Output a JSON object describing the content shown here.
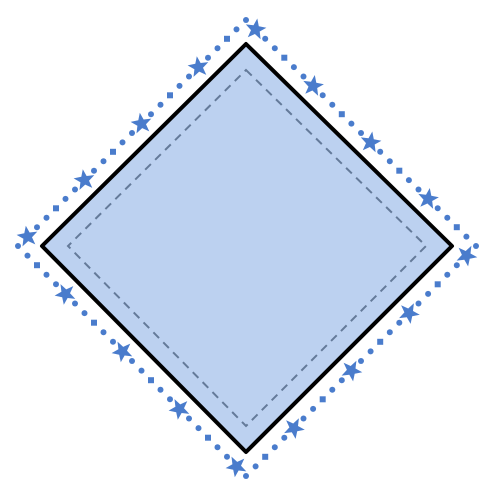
{
  "figure": {
    "shape": "diamond",
    "fill_color": "#bcd1f0",
    "border_color": "#000000",
    "inner_dash_color": "#647a99",
    "decoration_color": "#4a7ccc",
    "decoration_icons": [
      "star-icon",
      "dot-icon",
      "square-dot-icon"
    ]
  }
}
